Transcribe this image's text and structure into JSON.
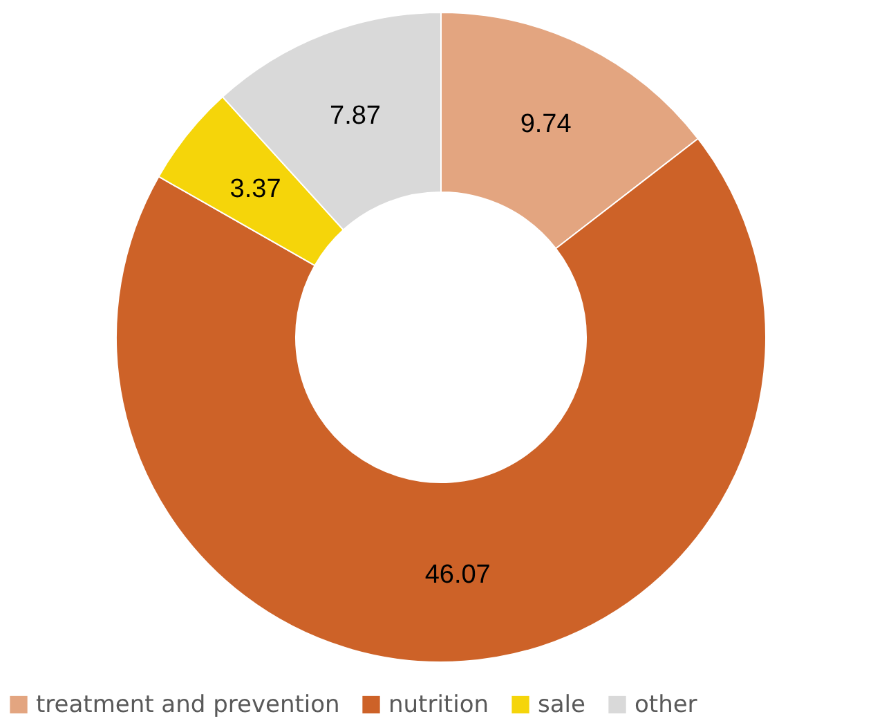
{
  "chart_data": {
    "type": "donut",
    "categories": [
      "treatment and prevention",
      "nutrition",
      "sale",
      "other"
    ],
    "values": [
      9.74,
      46.07,
      3.37,
      7.87
    ],
    "colors": [
      "#e3a580",
      "#cd6228",
      "#f5d50a",
      "#d9d9d9"
    ],
    "data_labels": true,
    "legend": "bottom"
  }
}
